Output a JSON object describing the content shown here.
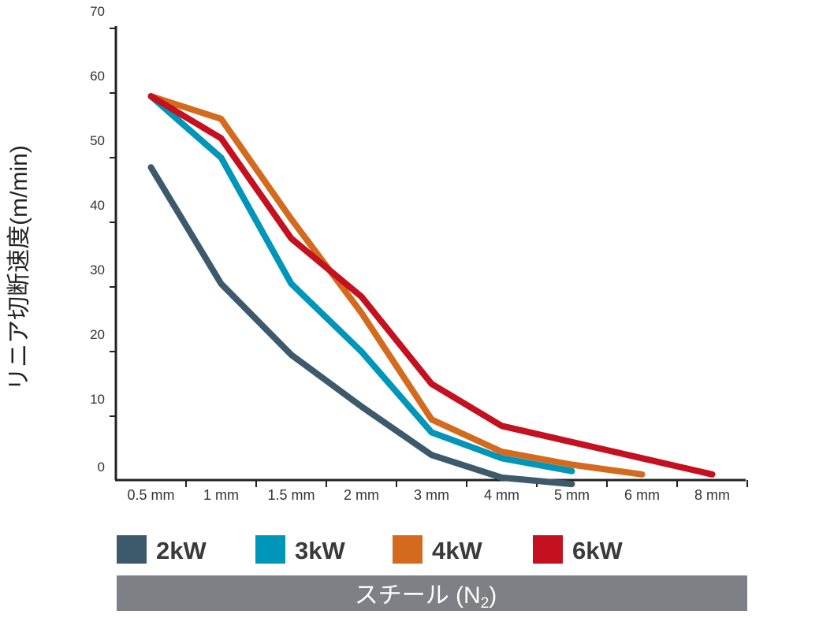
{
  "chart_data": {
    "type": "line",
    "ylabel": "リニア切断速度(m/min)",
    "xlabel": "",
    "caption": "スチール (N",
    "caption_sub": "2",
    "caption_end": ")",
    "categories": [
      "0.5 mm",
      "1 mm",
      "1.5 mm",
      "2 mm",
      "3 mm",
      "4 mm",
      "5 mm",
      "6 mm",
      "8 mm"
    ],
    "ylim": [
      0,
      70
    ],
    "yticks": [
      0,
      10,
      20,
      30,
      40,
      50,
      60,
      70
    ],
    "yticklabels": [
      "0",
      "10",
      "20",
      "30",
      "40",
      "50",
      "60",
      "70"
    ],
    "legend_position": "bottom",
    "grid": false,
    "series": [
      {
        "name": "2kW",
        "color": "#3d5a6c",
        "values": [
          48.5,
          30.5,
          19.5,
          11.5,
          4,
          0.5,
          -0.5,
          null,
          null
        ]
      },
      {
        "name": "3kW",
        "color": "#0096b9",
        "values": [
          59.5,
          50,
          30.5,
          20,
          7.5,
          3.5,
          1.5,
          null,
          null
        ]
      },
      {
        "name": "4kW",
        "color": "#d46a1e",
        "values": [
          59.5,
          56,
          40.5,
          26,
          9.5,
          4.5,
          2.5,
          1,
          null
        ]
      },
      {
        "name": "6kW",
        "color": "#c4101f",
        "values": [
          59.5,
          53,
          37.5,
          28.5,
          15,
          8.5,
          6,
          3.5,
          1
        ]
      }
    ]
  }
}
